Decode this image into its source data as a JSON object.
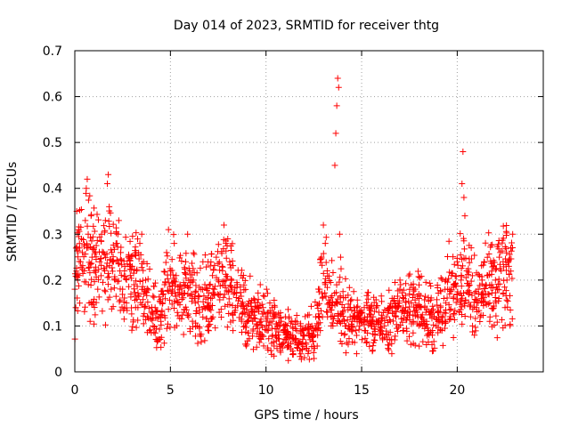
{
  "chart_data": {
    "type": "scatter",
    "marker": "plus",
    "title": "Day 014 of 2023, SRMTID for receiver thtg",
    "xlabel": "GPS time / hours",
    "ylabel": "SRMTID / TECUs",
    "xlim": [
      0,
      24.5
    ],
    "ylim": [
      0,
      0.7
    ],
    "xticks": [
      0,
      5,
      10,
      15,
      20
    ],
    "xtick_labels": [
      "0",
      "5",
      "10",
      "15",
      "20"
    ],
    "yticks": [
      0,
      0.1,
      0.2,
      0.3,
      0.4,
      0.5,
      0.6,
      0.7
    ],
    "ytick_labels": [
      "0",
      "0.1",
      "0.2",
      "0.3",
      "0.4",
      "0.5",
      "0.6",
      "0.7"
    ],
    "grid": true,
    "color": "#ff0000",
    "envelope_description": "trend of the dense point cloud, [hour, approx_center_TECU]",
    "trend": [
      [
        0.0,
        0.2
      ],
      [
        0.5,
        0.27
      ],
      [
        1.0,
        0.24
      ],
      [
        1.5,
        0.22
      ],
      [
        2.0,
        0.23
      ],
      [
        2.5,
        0.2
      ],
      [
        3.0,
        0.21
      ],
      [
        3.5,
        0.19
      ],
      [
        4.0,
        0.13
      ],
      [
        4.5,
        0.12
      ],
      [
        5.0,
        0.2
      ],
      [
        5.5,
        0.18
      ],
      [
        6.0,
        0.17
      ],
      [
        6.5,
        0.15
      ],
      [
        7.0,
        0.16
      ],
      [
        7.5,
        0.18
      ],
      [
        8.0,
        0.2
      ],
      [
        8.5,
        0.17
      ],
      [
        9.0,
        0.12
      ],
      [
        9.5,
        0.13
      ],
      [
        10.0,
        0.11
      ],
      [
        10.5,
        0.1
      ],
      [
        11.0,
        0.09
      ],
      [
        11.5,
        0.07
      ],
      [
        12.0,
        0.07
      ],
      [
        12.5,
        0.09
      ],
      [
        13.0,
        0.2
      ],
      [
        13.5,
        0.15
      ],
      [
        14.0,
        0.13
      ],
      [
        14.5,
        0.11
      ],
      [
        15.0,
        0.11
      ],
      [
        15.5,
        0.11
      ],
      [
        16.0,
        0.1
      ],
      [
        16.5,
        0.11
      ],
      [
        17.0,
        0.13
      ],
      [
        17.5,
        0.14
      ],
      [
        18.0,
        0.14
      ],
      [
        18.5,
        0.12
      ],
      [
        19.0,
        0.12
      ],
      [
        19.5,
        0.18
      ],
      [
        20.0,
        0.18
      ],
      [
        20.5,
        0.2
      ],
      [
        21.0,
        0.15
      ],
      [
        21.5,
        0.19
      ],
      [
        22.0,
        0.2
      ],
      [
        22.5,
        0.21
      ],
      [
        22.9,
        0.22
      ]
    ],
    "series": [
      {
        "name": "SRMTID",
        "points": [
          [
            0.0,
            0.18
          ],
          [
            0.05,
            0.14
          ],
          [
            0.1,
            0.35
          ],
          [
            0.15,
            0.2
          ],
          [
            0.2,
            0.31
          ],
          [
            0.25,
            0.27
          ],
          [
            0.3,
            0.24
          ],
          [
            0.35,
            0.29
          ],
          [
            0.4,
            0.26
          ],
          [
            0.5,
            0.22
          ],
          [
            0.55,
            0.33
          ],
          [
            0.6,
            0.4
          ],
          [
            0.65,
            0.42
          ],
          [
            0.7,
            0.3
          ],
          [
            0.75,
            0.15
          ],
          [
            0.8,
            0.11
          ],
          [
            0.85,
            0.34
          ],
          [
            0.9,
            0.25
          ],
          [
            1.0,
            0.27
          ],
          [
            1.1,
            0.22
          ],
          [
            1.2,
            0.18
          ],
          [
            1.3,
            0.24
          ],
          [
            1.4,
            0.3
          ],
          [
            1.5,
            0.26
          ],
          [
            1.6,
            0.33
          ],
          [
            1.7,
            0.41
          ],
          [
            1.75,
            0.43
          ],
          [
            1.8,
            0.36
          ],
          [
            1.9,
            0.18
          ],
          [
            2.0,
            0.24
          ],
          [
            2.1,
            0.2
          ],
          [
            2.2,
            0.28
          ],
          [
            2.3,
            0.33
          ],
          [
            2.4,
            0.26
          ],
          [
            2.5,
            0.18
          ],
          [
            2.6,
            0.22
          ],
          [
            2.7,
            0.15
          ],
          [
            2.8,
            0.25
          ],
          [
            2.9,
            0.21
          ],
          [
            3.0,
            0.23
          ],
          [
            3.1,
            0.19
          ],
          [
            3.2,
            0.26
          ],
          [
            3.3,
            0.14
          ],
          [
            3.4,
            0.28
          ],
          [
            3.5,
            0.3
          ],
          [
            3.6,
            0.24
          ],
          [
            3.7,
            0.2
          ],
          [
            3.8,
            0.12
          ],
          [
            3.9,
            0.09
          ],
          [
            4.0,
            0.13
          ],
          [
            4.1,
            0.1
          ],
          [
            4.2,
            0.14
          ],
          [
            4.3,
            0.07
          ],
          [
            4.4,
            0.12
          ],
          [
            4.5,
            0.11
          ],
          [
            4.6,
            0.15
          ],
          [
            4.7,
            0.19
          ],
          [
            4.8,
            0.26
          ],
          [
            4.9,
            0.31
          ],
          [
            5.0,
            0.22
          ],
          [
            5.1,
            0.18
          ],
          [
            5.2,
            0.28
          ],
          [
            5.3,
            0.21
          ],
          [
            5.4,
            0.15
          ],
          [
            5.5,
            0.19
          ],
          [
            5.6,
            0.17
          ],
          [
            5.7,
            0.13
          ],
          [
            5.8,
            0.24
          ],
          [
            5.9,
            0.3
          ],
          [
            6.0,
            0.22
          ],
          [
            6.1,
            0.17
          ],
          [
            6.2,
            0.2
          ],
          [
            6.3,
            0.15
          ],
          [
            6.4,
            0.1
          ],
          [
            6.5,
            0.14
          ],
          [
            6.6,
            0.18
          ],
          [
            6.7,
            0.24
          ],
          [
            6.8,
            0.19
          ],
          [
            6.9,
            0.14
          ],
          [
            7.0,
            0.11
          ],
          [
            7.1,
            0.16
          ],
          [
            7.2,
            0.21
          ],
          [
            7.3,
            0.18
          ],
          [
            7.4,
            0.25
          ],
          [
            7.5,
            0.2
          ],
          [
            7.6,
            0.17
          ],
          [
            7.7,
            0.23
          ],
          [
            7.8,
            0.32
          ],
          [
            7.9,
            0.28
          ],
          [
            8.0,
            0.29
          ],
          [
            8.1,
            0.24
          ],
          [
            8.2,
            0.2
          ],
          [
            8.3,
            0.17
          ],
          [
            8.4,
            0.14
          ],
          [
            8.5,
            0.19
          ],
          [
            8.6,
            0.16
          ],
          [
            8.7,
            0.21
          ],
          [
            8.8,
            0.13
          ],
          [
            8.9,
            0.1
          ],
          [
            9.0,
            0.06
          ],
          [
            9.1,
            0.12
          ],
          [
            9.2,
            0.15
          ],
          [
            9.3,
            0.11
          ],
          [
            9.4,
            0.13
          ],
          [
            9.5,
            0.1
          ],
          [
            9.6,
            0.14
          ],
          [
            9.7,
            0.19
          ],
          [
            9.8,
            0.08
          ],
          [
            9.9,
            0.13
          ],
          [
            10.0,
            0.12
          ],
          [
            10.1,
            0.09
          ],
          [
            10.2,
            0.15
          ],
          [
            10.3,
            0.11
          ],
          [
            10.4,
            0.13
          ],
          [
            10.5,
            0.08
          ],
          [
            10.6,
            0.1
          ],
          [
            10.7,
            0.06
          ],
          [
            10.8,
            0.11
          ],
          [
            10.9,
            0.09
          ],
          [
            11.0,
            0.07
          ],
          [
            11.1,
            0.1
          ],
          [
            11.2,
            0.12
          ],
          [
            11.3,
            0.05
          ],
          [
            11.4,
            0.08
          ],
          [
            11.5,
            0.07
          ],
          [
            11.6,
            0.09
          ],
          [
            11.7,
            0.06
          ],
          [
            11.8,
            0.1
          ],
          [
            11.9,
            0.05
          ],
          [
            12.0,
            0.08
          ],
          [
            12.1,
            0.06
          ],
          [
            12.2,
            0.04
          ],
          [
            12.3,
            0.07
          ],
          [
            12.4,
            0.1
          ],
          [
            12.5,
            0.09
          ],
          [
            12.6,
            0.12
          ],
          [
            12.7,
            0.08
          ],
          [
            12.8,
            0.18
          ],
          [
            12.9,
            0.25
          ],
          [
            13.0,
            0.32
          ],
          [
            13.1,
            0.28
          ],
          [
            13.2,
            0.22
          ],
          [
            13.3,
            0.15
          ],
          [
            13.4,
            0.12
          ],
          [
            13.5,
            0.1
          ],
          [
            13.6,
            0.45
          ],
          [
            13.65,
            0.52
          ],
          [
            13.7,
            0.58
          ],
          [
            13.75,
            0.64
          ],
          [
            13.8,
            0.62
          ],
          [
            13.85,
            0.3
          ],
          [
            13.9,
            0.25
          ],
          [
            14.0,
            0.13
          ],
          [
            14.1,
            0.08
          ],
          [
            14.2,
            0.1
          ],
          [
            14.3,
            0.06
          ],
          [
            14.4,
            0.12
          ],
          [
            14.5,
            0.11
          ],
          [
            14.6,
            0.14
          ],
          [
            14.7,
            0.09
          ],
          [
            14.8,
            0.12
          ],
          [
            14.9,
            0.1
          ],
          [
            15.0,
            0.13
          ],
          [
            15.1,
            0.11
          ],
          [
            15.2,
            0.09
          ],
          [
            15.3,
            0.12
          ],
          [
            15.4,
            0.14
          ],
          [
            15.5,
            0.1
          ],
          [
            15.6,
            0.12
          ],
          [
            15.7,
            0.08
          ],
          [
            15.8,
            0.11
          ],
          [
            15.9,
            0.13
          ],
          [
            16.0,
            0.09
          ],
          [
            16.1,
            0.07
          ],
          [
            16.2,
            0.1
          ],
          [
            16.3,
            0.12
          ],
          [
            16.4,
            0.08
          ],
          [
            16.5,
            0.11
          ],
          [
            16.6,
            0.14
          ],
          [
            16.7,
            0.16
          ],
          [
            16.8,
            0.12
          ],
          [
            16.9,
            0.15
          ],
          [
            17.0,
            0.18
          ],
          [
            17.1,
            0.13
          ],
          [
            17.2,
            0.16
          ],
          [
            17.3,
            0.14
          ],
          [
            17.4,
            0.12
          ],
          [
            17.5,
            0.17
          ],
          [
            17.6,
            0.15
          ],
          [
            17.7,
            0.11
          ],
          [
            17.8,
            0.18
          ],
          [
            17.9,
            0.13
          ],
          [
            18.0,
            0.16
          ],
          [
            18.1,
            0.12
          ],
          [
            18.2,
            0.1
          ],
          [
            18.3,
            0.14
          ],
          [
            18.4,
            0.11
          ],
          [
            18.5,
            0.09
          ],
          [
            18.6,
            0.13
          ],
          [
            18.7,
            0.08
          ],
          [
            18.8,
            0.12
          ],
          [
            18.9,
            0.1
          ],
          [
            19.0,
            0.11
          ],
          [
            19.1,
            0.13
          ],
          [
            19.2,
            0.09
          ],
          [
            19.3,
            0.16
          ],
          [
            19.4,
            0.2
          ],
          [
            19.5,
            0.18
          ],
          [
            19.6,
            0.17
          ],
          [
            19.7,
            0.21
          ],
          [
            19.8,
            0.16
          ],
          [
            19.9,
            0.19
          ],
          [
            20.0,
            0.24
          ],
          [
            20.1,
            0.13
          ],
          [
            20.2,
            0.2
          ],
          [
            20.25,
            0.41
          ],
          [
            20.3,
            0.48
          ],
          [
            20.35,
            0.38
          ],
          [
            20.4,
            0.34
          ],
          [
            20.5,
            0.22
          ],
          [
            20.6,
            0.17
          ],
          [
            20.7,
            0.12
          ],
          [
            20.8,
            0.1
          ],
          [
            20.9,
            0.08
          ],
          [
            21.0,
            0.14
          ],
          [
            21.1,
            0.18
          ],
          [
            21.2,
            0.12
          ],
          [
            21.3,
            0.2
          ],
          [
            21.4,
            0.24
          ],
          [
            21.5,
            0.17
          ],
          [
            21.6,
            0.21
          ],
          [
            21.7,
            0.15
          ],
          [
            21.8,
            0.19
          ],
          [
            21.9,
            0.23
          ],
          [
            22.0,
            0.2
          ],
          [
            22.1,
            0.18
          ],
          [
            22.2,
            0.25
          ],
          [
            22.3,
            0.22
          ],
          [
            22.4,
            0.17
          ],
          [
            22.5,
            0.14
          ],
          [
            22.6,
            0.2
          ],
          [
            22.7,
            0.23
          ],
          [
            22.8,
            0.27
          ],
          [
            22.9,
            0.3
          ]
        ]
      }
    ]
  }
}
